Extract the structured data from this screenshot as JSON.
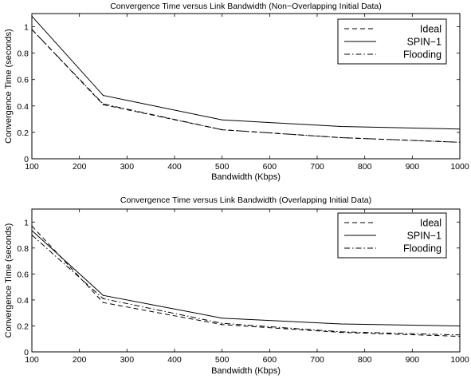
{
  "chart_data": [
    {
      "type": "line",
      "title": "Convergence Time versus Link Bandwidth (Non−Overlapping Initial Data)",
      "xlabel": "Bandwidth (Kbps)",
      "ylabel": "Convergence Time (seconds)",
      "xlim": [
        100,
        1000
      ],
      "ylim": [
        0,
        1.1
      ],
      "xticks": [
        100,
        200,
        300,
        400,
        500,
        600,
        700,
        800,
        900,
        1000
      ],
      "yticks": [
        0,
        0.2,
        0.4,
        0.6,
        0.8,
        1
      ],
      "grid": false,
      "legend": "top-right",
      "series": [
        {
          "name": "Ideal",
          "dash": "dashed",
          "x": [
            100,
            250,
            500,
            750,
            1000
          ],
          "values": [
            0.98,
            0.41,
            0.22,
            0.16,
            0.125
          ]
        },
        {
          "name": "SPIN−1",
          "dash": "solid",
          "x": [
            100,
            250,
            500,
            750,
            1000
          ],
          "values": [
            1.08,
            0.48,
            0.295,
            0.245,
            0.225
          ]
        },
        {
          "name": "Flooding",
          "dash": "dashdot",
          "x": [
            100,
            250,
            500,
            750,
            1000
          ],
          "values": [
            0.98,
            0.415,
            0.22,
            0.16,
            0.125
          ]
        }
      ]
    },
    {
      "type": "line",
      "title": "Convergence Time versus Link Bandwidth (Overlapping Initial Data)",
      "xlabel": "Bandwidth (Kbps)",
      "ylabel": "Convergence Time (seconds)",
      "xlim": [
        100,
        1000
      ],
      "ylim": [
        0,
        1.1
      ],
      "xticks": [
        100,
        200,
        300,
        400,
        500,
        600,
        700,
        800,
        900,
        1000
      ],
      "yticks": [
        0,
        0.2,
        0.4,
        0.6,
        0.8,
        1
      ],
      "grid": false,
      "legend": "top-right",
      "series": [
        {
          "name": "Ideal",
          "dash": "dashed",
          "x": [
            100,
            250,
            500,
            750,
            1000
          ],
          "values": [
            0.97,
            0.38,
            0.21,
            0.15,
            0.12
          ]
        },
        {
          "name": "SPIN−1",
          "dash": "solid",
          "x": [
            100,
            250,
            500,
            750,
            1000
          ],
          "values": [
            0.935,
            0.435,
            0.26,
            0.215,
            0.2
          ]
        },
        {
          "name": "Flooding",
          "dash": "dashdot",
          "x": [
            100,
            250,
            500,
            750,
            1000
          ],
          "values": [
            0.9,
            0.41,
            0.22,
            0.155,
            0.13
          ]
        }
      ]
    }
  ]
}
